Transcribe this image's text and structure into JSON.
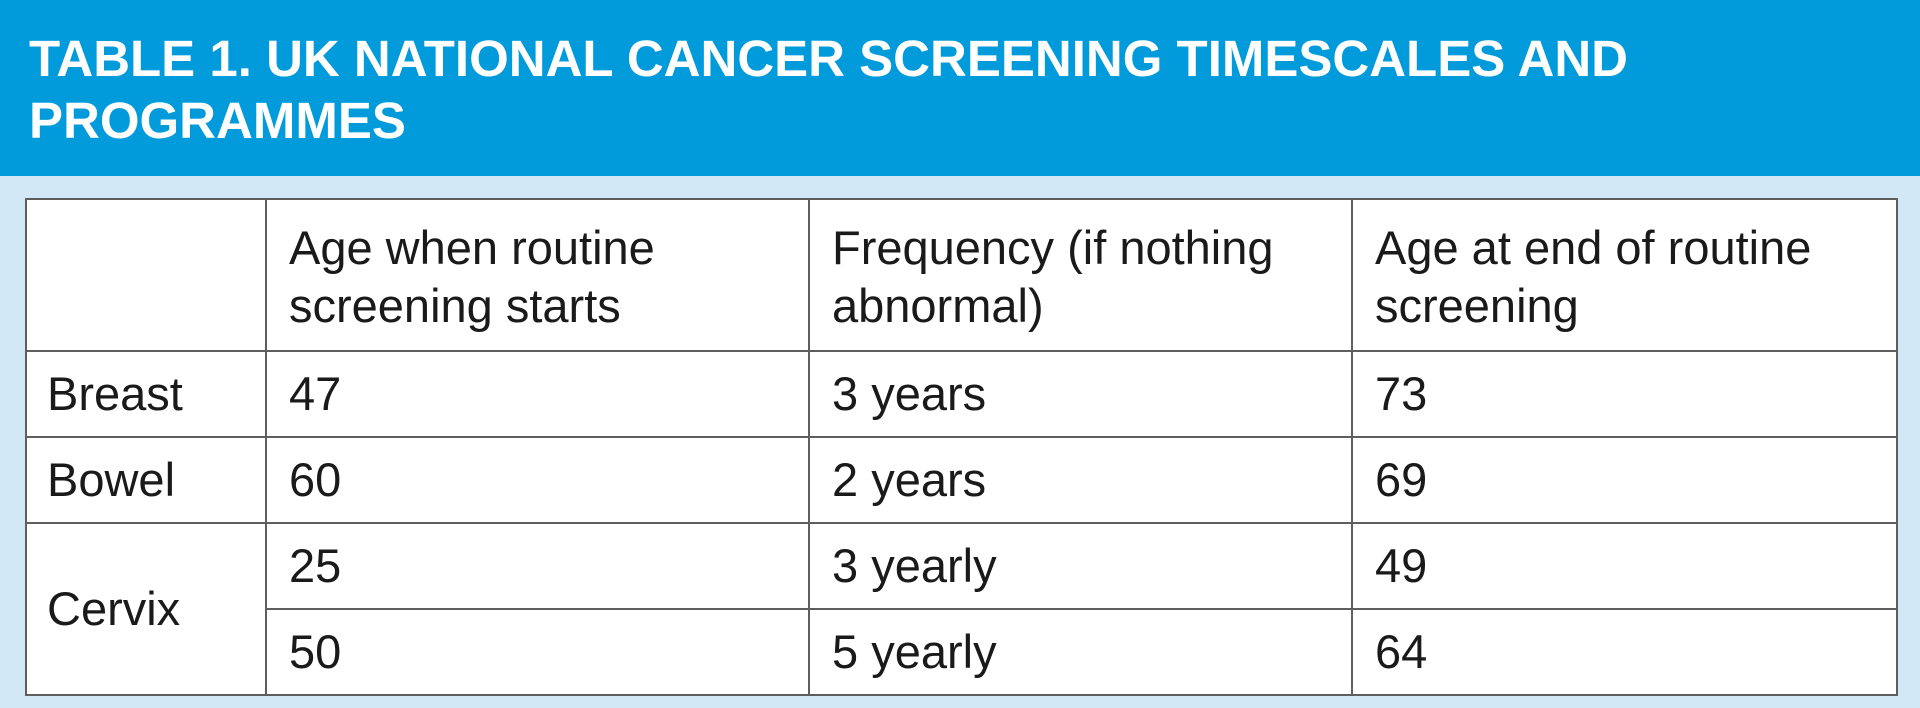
{
  "title": "TABLE 1. UK NATIONAL CANCER SCREENING TIMESCALES AND PROGRAMMES",
  "table": {
    "headers": [
      "",
      "Age when routine screening starts",
      "Frequency (if nothing abnormal)",
      "Age at end of routine screening"
    ],
    "rows": [
      {
        "site": "Breast",
        "start_age": "47",
        "frequency": "3 years",
        "end_age": "73"
      },
      {
        "site": "Bowel",
        "start_age": "60",
        "frequency": "2 years",
        "end_age": "69"
      },
      {
        "site": "Cervix",
        "start_age": "25",
        "frequency": "3 yearly",
        "end_age": "49"
      },
      {
        "site": "",
        "start_age": "50",
        "frequency": "5 yearly",
        "end_age": "64"
      }
    ]
  },
  "colors": {
    "header_bg": "#019bdc",
    "page_bg": "#d3e8f7",
    "border": "#5e5e5e",
    "text": "#1a1a1a"
  }
}
